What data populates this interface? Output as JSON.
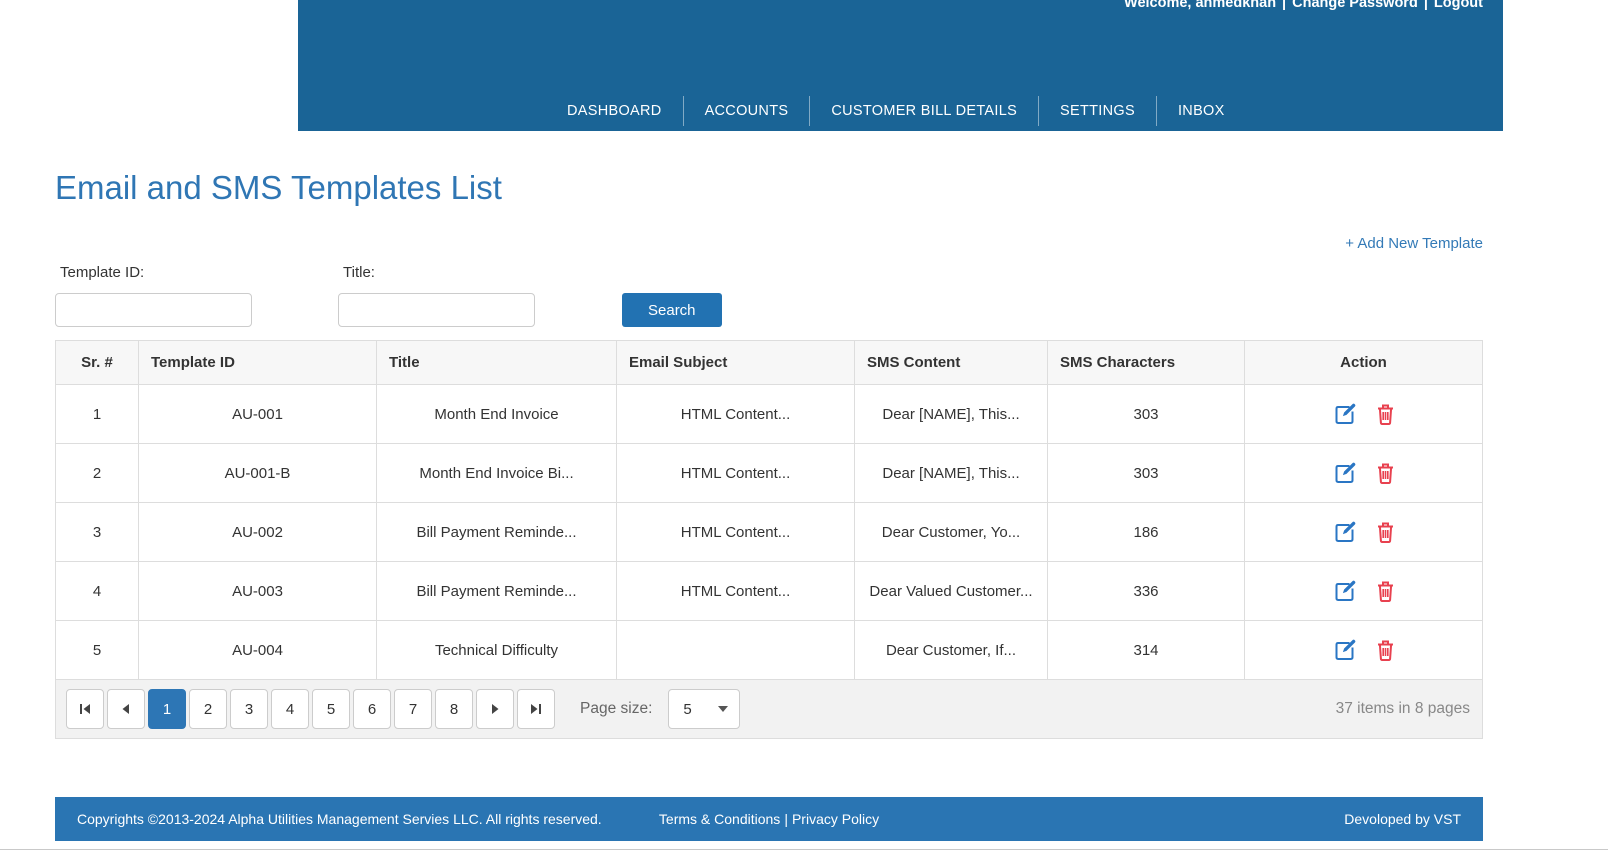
{
  "header": {
    "welcome_text": "Welcome, ahmedkhan",
    "separator": "|",
    "change_password_label": "Change Password",
    "logout_label": "Logout",
    "nav_items": [
      "DASHBOARD",
      "ACCOUNTS",
      "CUSTOMER BILL DETAILS",
      "SETTINGS",
      "INBOX"
    ]
  },
  "page": {
    "title": "Email and SMS Templates List",
    "add_new_template_label": "+ Add New Template"
  },
  "filters": {
    "template_id_label": "Template ID:",
    "template_id_value": "",
    "title_label": "Title:",
    "title_value": "",
    "search_button_label": "Search"
  },
  "table": {
    "columns": [
      "Sr. #",
      "Template ID",
      "Title",
      "Email Subject",
      "SMS Content",
      "SMS Characters",
      "Action"
    ],
    "rows": [
      {
        "sr": "1",
        "template_id": "AU-001",
        "title": "Month End Invoice",
        "email_subject": "HTML Content...",
        "sms_content": "Dear [NAME], This...",
        "sms_characters": "303"
      },
      {
        "sr": "2",
        "template_id": "AU-001-B",
        "title": "Month End Invoice Bi...",
        "email_subject": "HTML Content...",
        "sms_content": "Dear [NAME], This...",
        "sms_characters": "303"
      },
      {
        "sr": "3",
        "template_id": "AU-002",
        "title": "Bill Payment Reminde...",
        "email_subject": "HTML Content...",
        "sms_content": "Dear Customer, Yo...",
        "sms_characters": "186"
      },
      {
        "sr": "4",
        "template_id": "AU-003",
        "title": "Bill Payment Reminde...",
        "email_subject": "HTML Content...",
        "sms_content": "Dear Valued Customer...",
        "sms_characters": "336"
      },
      {
        "sr": "5",
        "template_id": "AU-004",
        "title": "Technical Difficulty",
        "email_subject": "",
        "sms_content": "Dear Customer, If...",
        "sms_characters": "314"
      }
    ]
  },
  "pagination": {
    "pages": [
      "1",
      "2",
      "3",
      "4",
      "5",
      "6",
      "7",
      "8"
    ],
    "active_page": "1",
    "page_size_label": "Page size:",
    "page_size_value": "5",
    "summary": "37 items in 8 pages"
  },
  "footer": {
    "copyright": "Copyrights ©2013-2024 Alpha Utilities Management Servies LLC. All rights reserved.",
    "terms_label": "Terms & Conditions",
    "separator": "|",
    "privacy_label": "Privacy Policy",
    "developed_by": "Devoloped by VST"
  },
  "colors": {
    "topbar": "#1a6496",
    "footer": "#2a75b3",
    "accent_blue": "#2272b2",
    "link_blue": "#337ab7",
    "delete_red": "#e8414f"
  }
}
